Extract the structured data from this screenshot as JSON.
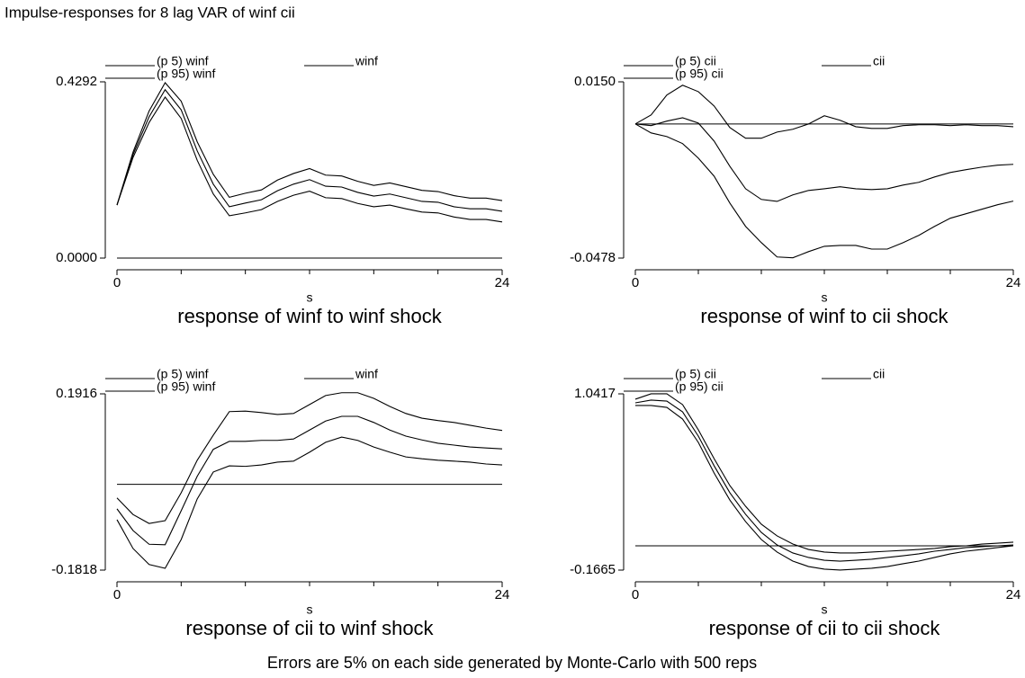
{
  "title": "Impulse-responses for 8 lag VAR of winf cii",
  "chart_data": [
    {
      "type": "line",
      "title": "response of winf to winf shock",
      "xlabel": "s",
      "x": [
        0,
        1,
        2,
        3,
        4,
        5,
        6,
        7,
        8,
        9,
        10,
        11,
        12,
        13,
        14,
        15,
        16,
        17,
        18,
        19,
        20,
        21,
        22,
        23,
        24
      ],
      "xlim": [
        0,
        24
      ],
      "xticks": [
        0,
        24
      ],
      "xminor_ticks": [
        4,
        8,
        12,
        16,
        20
      ],
      "ylim": [
        0,
        0.4292
      ],
      "yticks": [
        {
          "value": 0,
          "label": "0.0000"
        },
        {
          "value": 0.4292,
          "label": "0.4292"
        }
      ],
      "hline": 0,
      "series": [
        {
          "name": "(p 5) winf",
          "color": "#000000",
          "values": [
            0.129,
            0.245,
            0.33,
            0.392,
            0.34,
            0.238,
            0.156,
            0.103,
            0.11,
            0.118,
            0.138,
            0.153,
            0.163,
            0.147,
            0.145,
            0.133,
            0.125,
            0.129,
            0.12,
            0.112,
            0.11,
            0.1,
            0.094,
            0.094,
            0.088
          ]
        },
        {
          "name": "winf",
          "color": "#000000",
          "values": [
            0.129,
            0.252,
            0.344,
            0.41,
            0.361,
            0.261,
            0.18,
            0.125,
            0.134,
            0.142,
            0.164,
            0.18,
            0.191,
            0.175,
            0.173,
            0.16,
            0.151,
            0.156,
            0.147,
            0.138,
            0.136,
            0.125,
            0.12,
            0.12,
            0.114
          ]
        },
        {
          "name": "(p 95) winf",
          "color": "#000000",
          "values": [
            0.129,
            0.258,
            0.358,
            0.427,
            0.382,
            0.283,
            0.204,
            0.148,
            0.158,
            0.166,
            0.19,
            0.206,
            0.218,
            0.202,
            0.2,
            0.187,
            0.177,
            0.183,
            0.174,
            0.165,
            0.162,
            0.152,
            0.146,
            0.146,
            0.14
          ]
        }
      ]
    },
    {
      "type": "line",
      "title": "response of winf to cii shock",
      "xlabel": "s",
      "x": [
        0,
        1,
        2,
        3,
        4,
        5,
        6,
        7,
        8,
        9,
        10,
        11,
        12,
        13,
        14,
        15,
        16,
        17,
        18,
        19,
        20,
        21,
        22,
        23,
        24
      ],
      "xlim": [
        0,
        24
      ],
      "xticks": [
        0,
        24
      ],
      "xminor_ticks": [
        4,
        8,
        12,
        16,
        20
      ],
      "ylim": [
        -0.0478,
        0.015
      ],
      "yticks": [
        {
          "value": -0.0478,
          "label": "-0.0478"
        },
        {
          "value": 0.015,
          "label": "0.0150"
        }
      ],
      "hline": 0,
      "series": [
        {
          "name": "(p 5) cii",
          "color": "#000000",
          "values": [
            0,
            -0.0032,
            -0.0045,
            -0.007,
            -0.0122,
            -0.0186,
            -0.0282,
            -0.0365,
            -0.0423,
            -0.0474,
            -0.0477,
            -0.0455,
            -0.0436,
            -0.0433,
            -0.0433,
            -0.0446,
            -0.0446,
            -0.0423,
            -0.0397,
            -0.0365,
            -0.0336,
            -0.032,
            -0.0304,
            -0.0288,
            -0.0275
          ]
        },
        {
          "name": "cii",
          "color": "#000000",
          "values": [
            0,
            -0.0006,
            0.001,
            0.0022,
            0.0003,
            -0.0061,
            -0.0151,
            -0.0231,
            -0.0269,
            -0.0276,
            -0.0253,
            -0.0237,
            -0.0231,
            -0.0224,
            -0.0231,
            -0.0234,
            -0.0231,
            -0.0218,
            -0.0208,
            -0.0189,
            -0.0173,
            -0.0163,
            -0.0154,
            -0.0147,
            -0.0144
          ]
        },
        {
          "name": "(p 95) cii",
          "color": "#000000",
          "values": [
            0,
            0.0032,
            0.0103,
            0.0138,
            0.0115,
            0.0064,
            -0.0013,
            -0.0051,
            -0.0051,
            -0.0029,
            -0.0019,
            0,
            0.0029,
            0.0013,
            -0.001,
            -0.0016,
            -0.0016,
            -0.0006,
            -0.0003,
            -0.0003,
            -0.0006,
            -0.0003,
            -0.0006,
            -0.0006,
            -0.001
          ]
        }
      ]
    },
    {
      "type": "line",
      "title": "response of cii to winf shock",
      "xlabel": "s",
      "x": [
        0,
        1,
        2,
        3,
        4,
        5,
        6,
        7,
        8,
        9,
        10,
        11,
        12,
        13,
        14,
        15,
        16,
        17,
        18,
        19,
        20,
        21,
        22,
        23,
        24
      ],
      "xlim": [
        0,
        24
      ],
      "xticks": [
        0,
        24
      ],
      "xminor_ticks": [
        4,
        8,
        12,
        16,
        20
      ],
      "ylim": [
        -0.1818,
        0.1916
      ],
      "yticks": [
        -0.1818,
        0.1916
      ],
      "hline": 0,
      "series": [
        {
          "name": "(p 5) winf",
          "color": "#000000",
          "values": [
            -0.075,
            -0.136,
            -0.17,
            -0.178,
            -0.117,
            -0.031,
            0.026,
            0.039,
            0.038,
            0.041,
            0.047,
            0.049,
            0.068,
            0.089,
            0.1,
            0.093,
            0.079,
            0.068,
            0.058,
            0.054,
            0.051,
            0.049,
            0.047,
            0.043,
            0.041
          ]
        },
        {
          "name": "winf",
          "color": "#000000",
          "values": [
            -0.052,
            -0.098,
            -0.127,
            -0.128,
            -0.056,
            0.017,
            0.074,
            0.091,
            0.091,
            0.093,
            0.093,
            0.096,
            0.115,
            0.134,
            0.144,
            0.144,
            0.131,
            0.115,
            0.102,
            0.094,
            0.087,
            0.083,
            0.079,
            0.077,
            0.075
          ]
        },
        {
          "name": "(p 95) winf",
          "color": "#000000",
          "values": [
            -0.029,
            -0.064,
            -0.083,
            -0.077,
            -0.018,
            0.051,
            0.104,
            0.154,
            0.155,
            0.152,
            0.148,
            0.15,
            0.169,
            0.188,
            0.194,
            0.194,
            0.182,
            0.165,
            0.15,
            0.14,
            0.135,
            0.131,
            0.125,
            0.119,
            0.114
          ]
        }
      ]
    },
    {
      "type": "line",
      "title": "response of cii to cii shock",
      "xlabel": "s",
      "x": [
        0,
        1,
        2,
        3,
        4,
        5,
        6,
        7,
        8,
        9,
        10,
        11,
        12,
        13,
        14,
        15,
        16,
        17,
        18,
        19,
        20,
        21,
        22,
        23,
        24
      ],
      "xlim": [
        0,
        24
      ],
      "xticks": [
        0,
        24
      ],
      "xminor_ticks": [
        4,
        8,
        12,
        16,
        20
      ],
      "ylim": [
        -0.1665,
        1.0417
      ],
      "yticks": [
        -0.1665,
        1.0417
      ],
      "hline": 0,
      "series": [
        {
          "name": "(p 5) cii",
          "color": "#000000",
          "values": [
            0.962,
            0.962,
            0.949,
            0.869,
            0.709,
            0.499,
            0.314,
            0.166,
            0.043,
            -0.043,
            -0.105,
            -0.142,
            -0.16,
            -0.166,
            -0.16,
            -0.154,
            -0.142,
            -0.123,
            -0.105,
            -0.08,
            -0.055,
            -0.037,
            -0.025,
            -0.012,
            0
          ]
        },
        {
          "name": "cii",
          "color": "#000000",
          "values": [
            0.98,
            0.999,
            0.992,
            0.918,
            0.752,
            0.549,
            0.364,
            0.216,
            0.092,
            0.006,
            -0.049,
            -0.08,
            -0.099,
            -0.105,
            -0.099,
            -0.092,
            -0.08,
            -0.068,
            -0.055,
            -0.037,
            -0.025,
            -0.012,
            -0.006,
            0,
            0.006
          ]
        },
        {
          "name": "(p 95) cii",
          "color": "#000000",
          "values": [
            1.005,
            1.042,
            1.042,
            0.968,
            0.795,
            0.598,
            0.413,
            0.271,
            0.148,
            0.068,
            0.012,
            -0.025,
            -0.043,
            -0.049,
            -0.049,
            -0.043,
            -0.037,
            -0.031,
            -0.025,
            -0.018,
            -0.006,
            0,
            0.012,
            0.018,
            0.025
          ]
        }
      ]
    }
  ],
  "note": "Errors are 5% on each side generated by Monte-Carlo with 500 reps"
}
